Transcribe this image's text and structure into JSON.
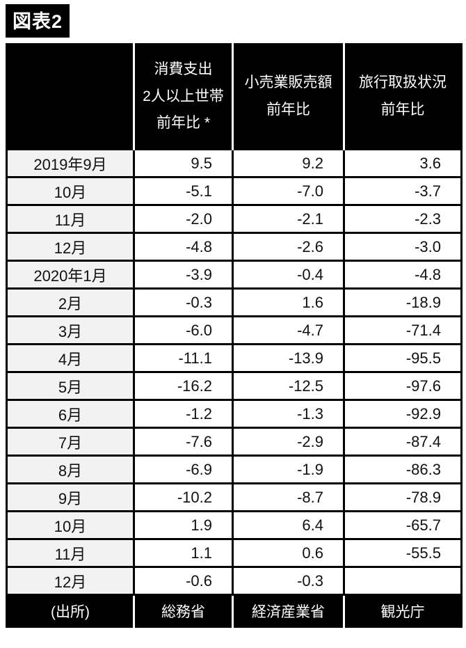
{
  "title": "図表2",
  "table": {
    "header": {
      "consumption": [
        "消費支出",
        "2人以上世帯",
        "前年比 *"
      ],
      "retail": [
        "小売業販売額",
        "前年比"
      ],
      "travel": [
        "旅行取扱状況",
        "前年比"
      ]
    },
    "rows": [
      {
        "date": "2019年9月",
        "values": [
          "9.5",
          "9.2",
          "3.6"
        ]
      },
      {
        "date": "10月",
        "values": [
          "-5.1",
          "-7.0",
          "-3.7"
        ]
      },
      {
        "date": "11月",
        "values": [
          "-2.0",
          "-2.1",
          "-2.3"
        ]
      },
      {
        "date": "12月",
        "values": [
          "-4.8",
          "-2.6",
          "-3.0"
        ]
      },
      {
        "date": "2020年1月",
        "values": [
          "-3.9",
          "-0.4",
          "-4.8"
        ]
      },
      {
        "date": "2月",
        "values": [
          "-0.3",
          "1.6",
          "-18.9"
        ]
      },
      {
        "date": "3月",
        "values": [
          "-6.0",
          "-4.7",
          "-71.4"
        ]
      },
      {
        "date": "4月",
        "values": [
          "-11.1",
          "-13.9",
          "-95.5"
        ]
      },
      {
        "date": "5月",
        "values": [
          "-16.2",
          "-12.5",
          "-97.6"
        ]
      },
      {
        "date": "6月",
        "values": [
          "-1.2",
          "-1.3",
          "-92.9"
        ]
      },
      {
        "date": "7月",
        "values": [
          "-7.6",
          "-2.9",
          "-87.4"
        ]
      },
      {
        "date": "8月",
        "values": [
          "-6.9",
          "-1.9",
          "-86.3"
        ]
      },
      {
        "date": "9月",
        "values": [
          "-10.2",
          "-8.7",
          "-78.9"
        ]
      },
      {
        "date": "10月",
        "values": [
          "1.9",
          "6.4",
          "-65.7"
        ]
      },
      {
        "date": "11月",
        "values": [
          "1.1",
          "0.6",
          "-55.5"
        ]
      },
      {
        "date": "12月",
        "values": [
          "-0.6",
          "-0.3",
          ""
        ]
      }
    ],
    "source": {
      "label": "(出所)",
      "names": [
        "総務省",
        "経済産業省",
        "観光庁"
      ]
    }
  },
  "colors": {
    "header_bg": "#000000",
    "header_text": "#ffffff",
    "date_cell_bg": "#f2f2f2",
    "data_cell_bg": "#ffffff",
    "border": "#000000"
  },
  "chart_data": {
    "type": "table",
    "title": "図表2",
    "categories": [
      "2019年9月",
      "10月",
      "11月",
      "12月",
      "2020年1月",
      "2月",
      "3月",
      "4月",
      "5月",
      "6月",
      "7月",
      "8月",
      "9月",
      "10月",
      "11月",
      "12月"
    ],
    "series": [
      {
        "name": "消費支出 2人以上世帯 前年比 *",
        "values": [
          9.5,
          -5.1,
          -2.0,
          -4.8,
          -3.9,
          -0.3,
          -6.0,
          -11.1,
          -16.2,
          -1.2,
          -7.6,
          -6.9,
          -10.2,
          1.9,
          1.1,
          -0.6
        ]
      },
      {
        "name": "小売業販売額 前年比",
        "values": [
          9.2,
          -7.0,
          -2.1,
          -2.6,
          -0.4,
          1.6,
          -4.7,
          -13.9,
          -12.5,
          -1.3,
          -2.9,
          -1.9,
          -8.7,
          6.4,
          0.6,
          -0.3
        ]
      },
      {
        "name": "旅行取扱状況 前年比",
        "values": [
          3.6,
          -3.7,
          -2.3,
          -3.0,
          -4.8,
          -18.9,
          -71.4,
          -95.5,
          -97.6,
          -92.9,
          -87.4,
          -86.3,
          -78.9,
          -65.7,
          -55.5,
          null
        ]
      }
    ],
    "source_label": "(出所)",
    "sources": [
      "総務省",
      "経済産業省",
      "観光庁"
    ]
  }
}
